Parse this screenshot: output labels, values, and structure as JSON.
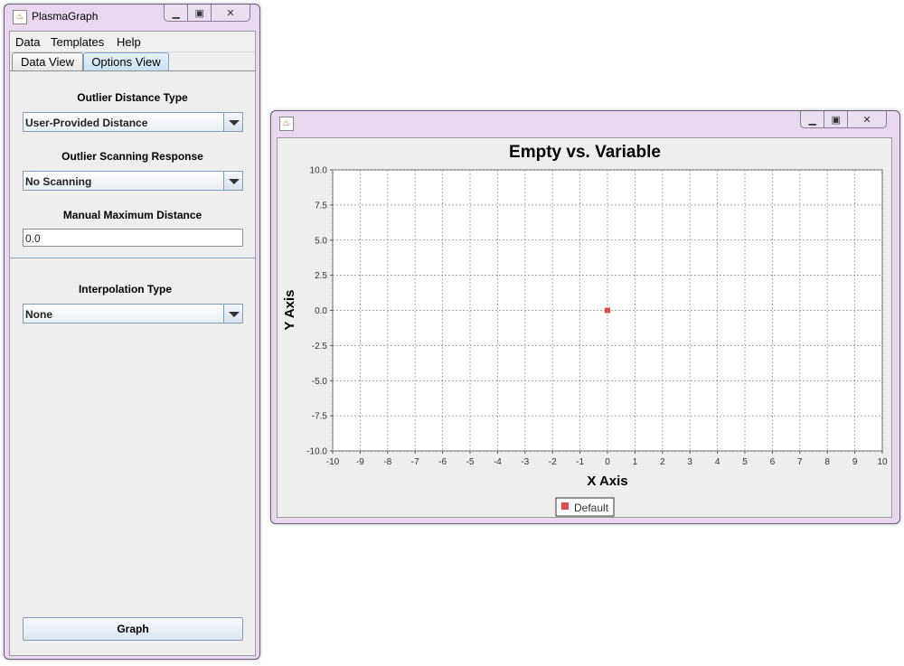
{
  "main_window": {
    "title": "PlasmaGraph",
    "menu": [
      "Data",
      "Templates",
      "Help"
    ],
    "tabs": [
      {
        "label": "Data View",
        "active": false
      },
      {
        "label": "Options View",
        "active": true
      }
    ],
    "options": {
      "outlier_distance_type_label": "Outlier Distance Type",
      "outlier_distance_type_value": "User-Provided Distance",
      "outlier_scanning_label": "Outlier Scanning Response",
      "outlier_scanning_value": "No Scanning",
      "manual_max_distance_label": "Manual Maximum Distance",
      "manual_max_distance_value": "0.0",
      "interpolation_type_label": "Interpolation Type",
      "interpolation_type_value": "None"
    },
    "graph_button": "Graph"
  },
  "graph_window": {
    "title": "",
    "controls": [
      "minimize-icon",
      "restore-icon",
      "close-icon"
    ]
  },
  "chart_data": {
    "type": "scatter",
    "title": "Empty vs. Variable",
    "xlabel": "X Axis",
    "ylabel": "Y Axis",
    "xlim": [
      -10,
      10
    ],
    "ylim": [
      -10,
      10
    ],
    "x_ticks": [
      -10,
      -9,
      -8,
      -7,
      -6,
      -5,
      -4,
      -3,
      -2,
      -1,
      0,
      1,
      2,
      3,
      4,
      5,
      6,
      7,
      8,
      9,
      10
    ],
    "x_tick_labels": [
      "-10",
      "-9",
      "-8",
      "-7",
      "-6",
      "-5",
      "-4",
      "-3",
      "-2",
      "-1",
      "0",
      "1",
      "2",
      "3",
      "4",
      "5",
      "6",
      "7",
      "8",
      "9",
      "10"
    ],
    "y_ticks": [
      10,
      7.5,
      5,
      2.5,
      0,
      -2.5,
      -5,
      -7.5,
      -10
    ],
    "y_tick_labels": [
      "10.0",
      "7.5",
      "5.0",
      "2.5",
      "0.0",
      "-2.5",
      "-5.0",
      "-7.5",
      "-10.0"
    ],
    "grid": true,
    "legend_position": "bottom-center",
    "series": [
      {
        "name": "Default",
        "color": "#e84a4a",
        "points": [
          {
            "x": 0,
            "y": 0
          }
        ]
      }
    ]
  }
}
